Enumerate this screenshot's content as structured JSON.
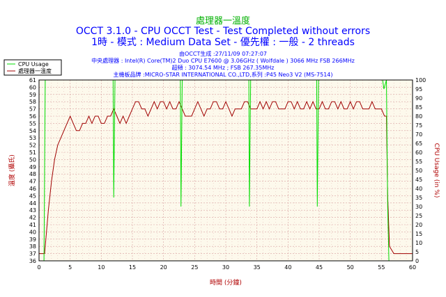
{
  "header": {
    "title": "處理器一溫度",
    "subtitle": "OCCT 3.1.0 - CPU OCCT Test - Test Completed without errors",
    "mode_line": "1時 - 模式 : Medium Data Set - 優先權 : 一般 - 2 threads"
  },
  "info": {
    "generated": "由OCCT生成 :27/11/09 07:27:07",
    "cpu": "中央處理器 : Intel(R) Core(TM)2 Duo CPU E7600 @ 3.06GHz ( Wolfdale ) 3066 MHz FSB 266MHz",
    "oc": "超頻 : 3074.54 MHz ; FSB 267.35MHz",
    "board": "主機板品牌 :MICRO-STAR INTERNATIONAL CO.,LTD,系列 :P45 Neo3 V2 (MS-7514)"
  },
  "legend": {
    "cpu_usage": "CPU Usage",
    "temperature": "處理器一溫度"
  },
  "colors": {
    "cpu_usage": "#00dd00",
    "temperature": "#a00000",
    "plot_bg": "#fdf9ec",
    "grid": "#d8a0a0"
  },
  "chart_data": {
    "type": "line",
    "xlabel": "時間 (分鐘)",
    "ylabel_left": "溫度 (攝氏)",
    "ylabel_right": "CPU Usage (in %)",
    "xlim": [
      0,
      60
    ],
    "ylim_left": [
      36,
      61
    ],
    "ylim_right": [
      0,
      100
    ],
    "x_ticks": [
      0,
      5,
      10,
      15,
      20,
      25,
      30,
      35,
      40,
      45,
      50,
      55,
      60
    ],
    "y_left_ticks": [
      36,
      37,
      38,
      39,
      40,
      41,
      42,
      43,
      44,
      45,
      46,
      47,
      48,
      49,
      50,
      51,
      52,
      53,
      54,
      55,
      56,
      57,
      58,
      59,
      60,
      61
    ],
    "y_right_ticks": [
      0,
      5,
      10,
      15,
      20,
      25,
      30,
      35,
      40,
      45,
      50,
      55,
      60,
      65,
      70,
      75,
      80,
      85,
      90,
      95,
      100
    ],
    "grid": true,
    "legend_position": "top-left",
    "series": [
      {
        "name": "處理器一溫度",
        "axis": "left",
        "x": [
          0,
          0.9,
          1.2,
          1.5,
          2.0,
          2.5,
          3.0,
          3.5,
          4.0,
          4.5,
          5.0,
          5.5,
          6.0,
          6.5,
          7.0,
          7.5,
          8.0,
          8.5,
          9.0,
          9.5,
          10.0,
          10.5,
          11.0,
          11.5,
          12.0,
          12.5,
          13.0,
          13.5,
          14.0,
          14.5,
          15.0,
          15.5,
          16.0,
          16.5,
          17.0,
          17.5,
          18.0,
          18.5,
          19.0,
          19.5,
          20.0,
          20.5,
          21.0,
          21.5,
          22.0,
          22.5,
          23.0,
          23.5,
          24.0,
          24.5,
          25.0,
          25.5,
          26.0,
          26.5,
          27.0,
          27.5,
          28.0,
          28.5,
          29.0,
          29.5,
          30.0,
          30.5,
          31.0,
          31.5,
          32.0,
          32.5,
          33.0,
          33.5,
          34.0,
          34.5,
          35.0,
          35.5,
          36.0,
          36.5,
          37.0,
          37.5,
          38.0,
          38.5,
          39.0,
          39.5,
          40.0,
          40.5,
          41.0,
          41.5,
          42.0,
          42.5,
          43.0,
          43.5,
          44.0,
          44.5,
          45.0,
          45.5,
          46.0,
          46.5,
          47.0,
          47.5,
          48.0,
          48.5,
          49.0,
          49.5,
          50.0,
          50.5,
          51.0,
          51.5,
          52.0,
          52.5,
          53.0,
          53.5,
          54.0,
          54.5,
          55.0,
          55.5,
          55.8,
          56.0,
          56.3,
          57.0,
          60.0
        ],
        "values": [
          37,
          37,
          40,
          43,
          47,
          50,
          52,
          53,
          54,
          55,
          56,
          55,
          54,
          54,
          55,
          55,
          56,
          55,
          56,
          56,
          55,
          55,
          56,
          56,
          57,
          56,
          55,
          56,
          55,
          56,
          57,
          58,
          58,
          57,
          57,
          56,
          57,
          58,
          57,
          58,
          58,
          57,
          58,
          57,
          57,
          58,
          57,
          56,
          56,
          56,
          57,
          58,
          57,
          56,
          57,
          57,
          58,
          58,
          57,
          57,
          58,
          57,
          56,
          57,
          57,
          57,
          58,
          58,
          57,
          57,
          57,
          58,
          57,
          58,
          57,
          58,
          58,
          57,
          57,
          57,
          58,
          58,
          57,
          58,
          57,
          57,
          58,
          57,
          58,
          57,
          57,
          58,
          57,
          57,
          58,
          58,
          57,
          58,
          57,
          57,
          58,
          57,
          58,
          58,
          57,
          57,
          57,
          58,
          57,
          57,
          57,
          56,
          56,
          45,
          38,
          37,
          37
        ]
      },
      {
        "name": "CPU Usage",
        "axis": "right",
        "x": [
          0,
          0.8,
          1.0,
          11.9,
          12.0,
          12.2,
          12.4,
          22.7,
          22.8,
          23.0,
          23.2,
          33.7,
          33.8,
          34.0,
          34.2,
          44.6,
          44.7,
          44.9,
          45.1,
          55.2,
          55.4,
          55.8,
          56.0,
          56.2,
          60.0
        ],
        "values": [
          0,
          0,
          100,
          100,
          35,
          100,
          100,
          100,
          30,
          100,
          100,
          100,
          30,
          100,
          100,
          100,
          30,
          100,
          100,
          100,
          95,
          100,
          30,
          0,
          0
        ]
      }
    ]
  }
}
